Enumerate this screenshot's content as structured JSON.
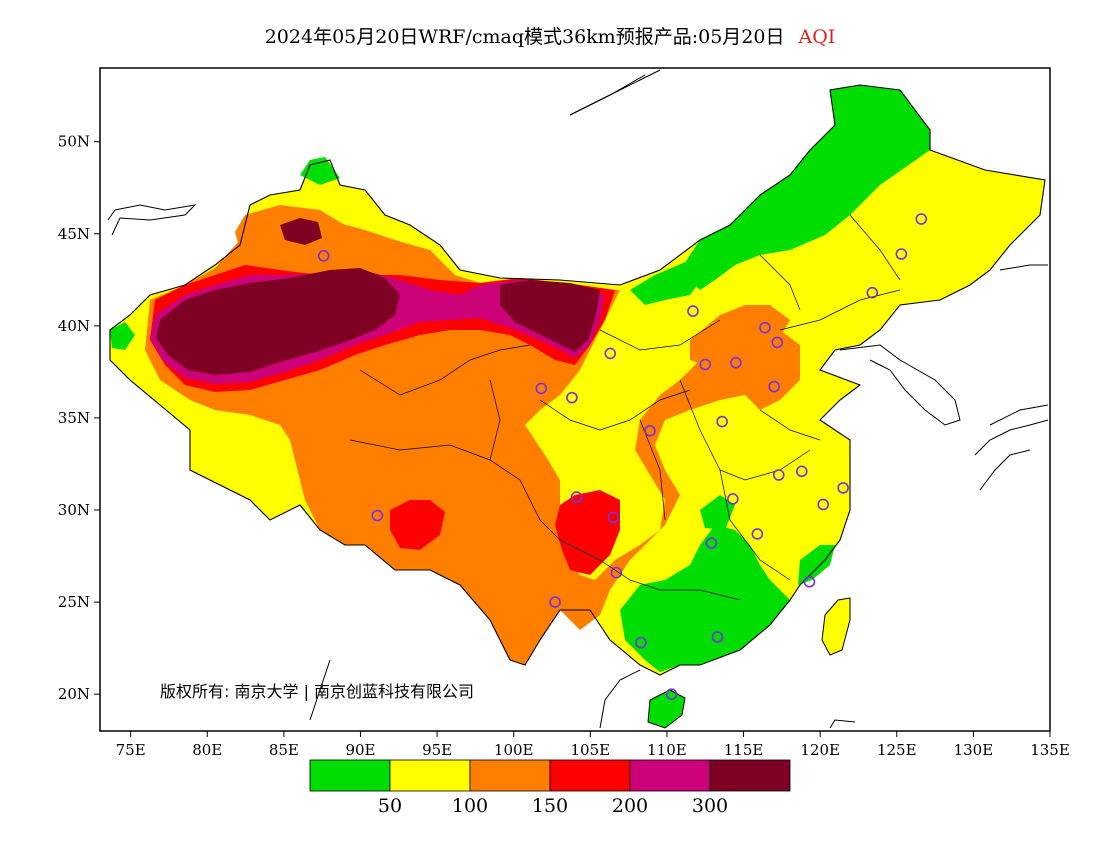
{
  "title": {
    "main": "2024年05月20日WRF/cmaq模式36km预报产品:05月20日",
    "variable": "AQI",
    "variable_color": "#e02020"
  },
  "axes": {
    "x_range": [
      73,
      135
    ],
    "y_range": [
      18,
      54
    ],
    "x_ticks": [
      {
        "value": 75,
        "label": "75E"
      },
      {
        "value": 80,
        "label": "80E"
      },
      {
        "value": 85,
        "label": "85E"
      },
      {
        "value": 90,
        "label": "90E"
      },
      {
        "value": 95,
        "label": "95E"
      },
      {
        "value": 100,
        "label": "100E"
      },
      {
        "value": 105,
        "label": "105E"
      },
      {
        "value": 110,
        "label": "110E"
      },
      {
        "value": 115,
        "label": "115E"
      },
      {
        "value": 120,
        "label": "120E"
      },
      {
        "value": 125,
        "label": "125E"
      },
      {
        "value": 130,
        "label": "130E"
      },
      {
        "value": 135,
        "label": "135E"
      }
    ],
    "y_ticks": [
      {
        "value": 20,
        "label": "20N"
      },
      {
        "value": 25,
        "label": "25N"
      },
      {
        "value": 30,
        "label": "30N"
      },
      {
        "value": 35,
        "label": "35N"
      },
      {
        "value": 40,
        "label": "40N"
      },
      {
        "value": 45,
        "label": "45N"
      },
      {
        "value": 50,
        "label": "50N"
      }
    ]
  },
  "copyright": "版权所有: 南京大学 | 南京创蓝科技有限公司",
  "legend": {
    "colors": [
      "#00dd00",
      "#ffff00",
      "#ff7e00",
      "#ff0000",
      "#cc0077",
      "#7e0023"
    ],
    "labels": [
      "50",
      "100",
      "150",
      "200",
      "300"
    ]
  },
  "aqi_colors": {
    "good": "#00dd00",
    "moderate": "#ffff00",
    "unhealthy_sensitive": "#ff7e00",
    "unhealthy": "#ff0000",
    "very_unhealthy": "#cc0077",
    "hazardous": "#7e0023"
  },
  "cities_marker_color": "#7a30e0",
  "cities": [
    {
      "lon": 87.6,
      "lat": 43.8
    },
    {
      "lon": 91.1,
      "lat": 29.7
    },
    {
      "lon": 101.8,
      "lat": 36.6
    },
    {
      "lon": 103.8,
      "lat": 36.1
    },
    {
      "lon": 106.3,
      "lat": 38.5
    },
    {
      "lon": 111.7,
      "lat": 40.8
    },
    {
      "lon": 116.4,
      "lat": 39.9
    },
    {
      "lon": 117.2,
      "lat": 39.1
    },
    {
      "lon": 114.5,
      "lat": 38.0
    },
    {
      "lon": 112.5,
      "lat": 37.9
    },
    {
      "lon": 117.0,
      "lat": 36.7
    },
    {
      "lon": 113.6,
      "lat": 34.8
    },
    {
      "lon": 108.9,
      "lat": 34.3
    },
    {
      "lon": 104.1,
      "lat": 30.7
    },
    {
      "lon": 106.5,
      "lat": 29.6
    },
    {
      "lon": 106.7,
      "lat": 26.6
    },
    {
      "lon": 102.7,
      "lat": 25.0
    },
    {
      "lon": 108.3,
      "lat": 22.8
    },
    {
      "lon": 113.3,
      "lat": 23.1
    },
    {
      "lon": 110.3,
      "lat": 20.0
    },
    {
      "lon": 112.9,
      "lat": 28.2
    },
    {
      "lon": 114.3,
      "lat": 30.6
    },
    {
      "lon": 115.9,
      "lat": 28.7
    },
    {
      "lon": 117.3,
      "lat": 31.9
    },
    {
      "lon": 118.8,
      "lat": 32.1
    },
    {
      "lon": 120.2,
      "lat": 30.3
    },
    {
      "lon": 121.5,
      "lat": 31.2
    },
    {
      "lon": 119.3,
      "lat": 26.1
    },
    {
      "lon": 123.4,
      "lat": 41.8
    },
    {
      "lon": 125.3,
      "lat": 43.9
    },
    {
      "lon": 126.6,
      "lat": 45.8
    }
  ]
}
